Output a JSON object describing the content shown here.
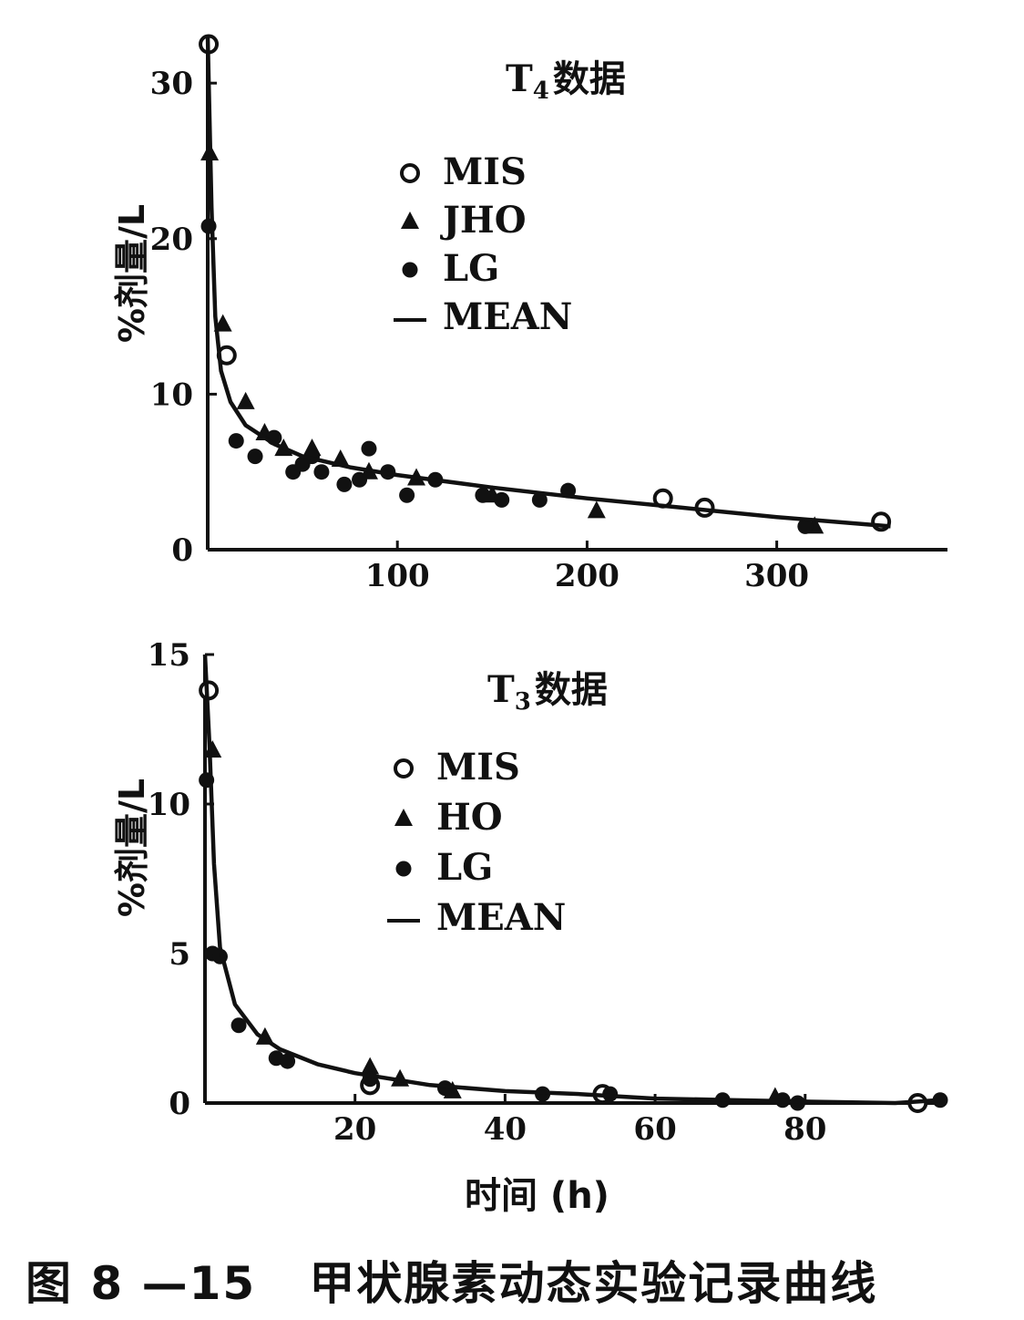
{
  "caption": "图 8 —15   甲状腺素动态实验记录曲线",
  "chart_data": [
    {
      "type": "scatter",
      "title_main": "T",
      "title_sub": "4",
      "title_rest": "数据",
      "ylabel": "%剂量/L",
      "xlabel": "",
      "xlim": [
        0,
        390
      ],
      "ylim": [
        0,
        33
      ],
      "xticks": [
        "100",
        "200",
        "300"
      ],
      "yticks": [
        "0",
        "10",
        "20",
        "30"
      ],
      "xtick_values": [
        100,
        200,
        300
      ],
      "ytick_values": [
        0,
        10,
        20,
        30
      ],
      "legend_position": "upper-center",
      "legend": [
        "MIS",
        "JHO",
        "LG",
        "MEAN"
      ],
      "series": [
        {
          "name": "MIS",
          "marker": "open-circle",
          "points": [
            [
              0.5,
              32.5
            ],
            [
              10,
              12.5
            ],
            [
              240,
              3.3
            ],
            [
              262,
              2.7
            ],
            [
              355,
              1.8
            ]
          ]
        },
        {
          "name": "JHO",
          "marker": "triangle",
          "points": [
            [
              1,
              25.5
            ],
            [
              8,
              14.5
            ],
            [
              20,
              9.5
            ],
            [
              30,
              7.5
            ],
            [
              40,
              6.5
            ],
            [
              55,
              6.5
            ],
            [
              70,
              5.8
            ],
            [
              85,
              5.0
            ],
            [
              110,
              4.6
            ],
            [
              150,
              3.5
            ],
            [
              205,
              2.5
            ],
            [
              320,
              1.5
            ]
          ]
        },
        {
          "name": "LG",
          "marker": "filled-circle",
          "points": [
            [
              0.5,
              20.8
            ],
            [
              15,
              7.0
            ],
            [
              25,
              6.0
            ],
            [
              35,
              7.2
            ],
            [
              45,
              5.0
            ],
            [
              50,
              5.5
            ],
            [
              55,
              6.0
            ],
            [
              60,
              5.0
            ],
            [
              72,
              4.2
            ],
            [
              80,
              4.5
            ],
            [
              85,
              6.5
            ],
            [
              95,
              5.0
            ],
            [
              105,
              3.5
            ],
            [
              120,
              4.5
            ],
            [
              145,
              3.5
            ],
            [
              155,
              3.2
            ],
            [
              175,
              3.2
            ],
            [
              190,
              3.8
            ],
            [
              315,
              1.5
            ]
          ]
        },
        {
          "name": "MEAN",
          "marker": "line",
          "points": [
            [
              0,
              33
            ],
            [
              2,
              22
            ],
            [
              4,
              15
            ],
            [
              7,
              11.5
            ],
            [
              12,
              9.5
            ],
            [
              20,
              8.0
            ],
            [
              35,
              6.8
            ],
            [
              50,
              6.0
            ],
            [
              75,
              5.3
            ],
            [
              100,
              4.8
            ],
            [
              150,
              4.0
            ],
            [
              200,
              3.3
            ],
            [
              250,
              2.7
            ],
            [
              300,
              2.1
            ],
            [
              360,
              1.5
            ]
          ]
        }
      ]
    },
    {
      "type": "scatter",
      "title_main": "T",
      "title_sub": "3",
      "title_rest": "数据",
      "ylabel": "%剂量/L",
      "xlabel": "时间 (h)",
      "xlim": [
        0,
        98
      ],
      "ylim": [
        0,
        15
      ],
      "xticks": [
        "20",
        "40",
        "60",
        "80"
      ],
      "yticks": [
        "0",
        "5",
        "10",
        "15"
      ],
      "xtick_values": [
        20,
        40,
        60,
        80
      ],
      "ytick_values": [
        0,
        5,
        10,
        15
      ],
      "legend_position": "upper-center",
      "legend": [
        "MIS",
        "HO",
        "LG",
        "MEAN"
      ],
      "series": [
        {
          "name": "MIS",
          "marker": "open-circle",
          "points": [
            [
              0.5,
              13.8
            ],
            [
              22,
              0.6
            ],
            [
              53,
              0.3
            ],
            [
              95,
              0.0
            ]
          ]
        },
        {
          "name": "HO",
          "marker": "triangle",
          "points": [
            [
              1,
              11.8
            ],
            [
              8,
              2.2
            ],
            [
              22,
              1.2
            ],
            [
              26,
              0.8
            ],
            [
              33,
              0.4
            ],
            [
              76,
              0.2
            ]
          ]
        },
        {
          "name": "LG",
          "marker": "filled-circle",
          "points": [
            [
              0.2,
              10.8
            ],
            [
              1,
              5.0
            ],
            [
              2,
              4.9
            ],
            [
              4.5,
              2.6
            ],
            [
              9.5,
              1.5
            ],
            [
              11,
              1.4
            ],
            [
              22,
              0.8
            ],
            [
              32,
              0.5
            ],
            [
              45,
              0.3
            ],
            [
              54,
              0.3
            ],
            [
              69,
              0.1
            ],
            [
              77,
              0.1
            ],
            [
              79,
              0.0
            ],
            [
              98,
              0.1
            ]
          ]
        },
        {
          "name": "MEAN",
          "marker": "line",
          "points": [
            [
              0,
              15
            ],
            [
              0.6,
              12
            ],
            [
              1.2,
              8
            ],
            [
              2,
              5.2
            ],
            [
              4,
              3.3
            ],
            [
              7,
              2.3
            ],
            [
              10,
              1.8
            ],
            [
              15,
              1.3
            ],
            [
              20,
              1.0
            ],
            [
              30,
              0.6
            ],
            [
              40,
              0.4
            ],
            [
              50,
              0.3
            ],
            [
              60,
              0.15
            ],
            [
              70,
              0.1
            ],
            [
              80,
              0.05
            ],
            [
              92,
              0.0
            ],
            [
              98,
              0.1
            ]
          ]
        }
      ]
    }
  ]
}
